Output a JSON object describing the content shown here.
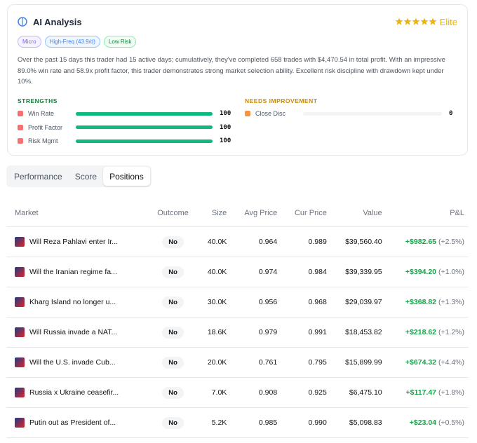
{
  "analysis": {
    "title": "AI Analysis",
    "badge": "Elite",
    "tags": [
      "Micro",
      "High-Freq (43.9/d)",
      "Low Risk"
    ],
    "summary": "Over the past 15 days this trader had 15 active days; cumulatively, they've completed 658 trades with $4,470.54 in total profit. With an impressive 89.0% win rate and 58.9x profit factor, this trader demonstrates strong market selection ability. Excellent risk discipline with drawdown kept under 10%.",
    "strengths_title": "STRENGTHS",
    "strengths": [
      {
        "label": "Win Rate",
        "score": 100
      },
      {
        "label": "Profit Factor",
        "score": 100
      },
      {
        "label": "Risk Mgmt",
        "score": 100
      }
    ],
    "improvement_title": "NEEDS IMPROVEMENT",
    "improvements": [
      {
        "label": "Close Disc",
        "score": 0
      }
    ]
  },
  "tabs": [
    "Performance",
    "Score",
    "Positions"
  ],
  "active_tab": 2,
  "table": {
    "columns": [
      "Market",
      "Outcome",
      "Size",
      "Avg Price",
      "Cur Price",
      "Value",
      "P&L"
    ],
    "rows": [
      [
        "Will Reza Pahlavi enter Ir...",
        "No",
        "40.0K",
        "0.964",
        "0.989",
        "$39,560.40",
        "+$982.65",
        "(+2.5%)"
      ],
      [
        "Will the Iranian regime fa...",
        "No",
        "40.0K",
        "0.974",
        "0.984",
        "$39,339.95",
        "+$394.20",
        "(+1.0%)"
      ],
      [
        "Kharg Island no longer u...",
        "No",
        "30.0K",
        "0.956",
        "0.968",
        "$29,039.97",
        "+$368.82",
        "(+1.3%)"
      ],
      [
        "Will Russia invade a NAT...",
        "No",
        "18.6K",
        "0.979",
        "0.991",
        "$18,453.82",
        "+$218.62",
        "(+1.2%)"
      ],
      [
        "Will the U.S. invade Cub...",
        "No",
        "20.0K",
        "0.761",
        "0.795",
        "$15,899.99",
        "+$674.32",
        "(+4.4%)"
      ],
      [
        "Russia x Ukraine ceasefir...",
        "No",
        "7.0K",
        "0.908",
        "0.925",
        "$6,475.10",
        "+$117.47",
        "(+1.8%)"
      ],
      [
        "Putin out as President of...",
        "No",
        "5.2K",
        "0.985",
        "0.990",
        "$5,098.83",
        "+$23.04",
        "(+0.5%)"
      ]
    ]
  }
}
